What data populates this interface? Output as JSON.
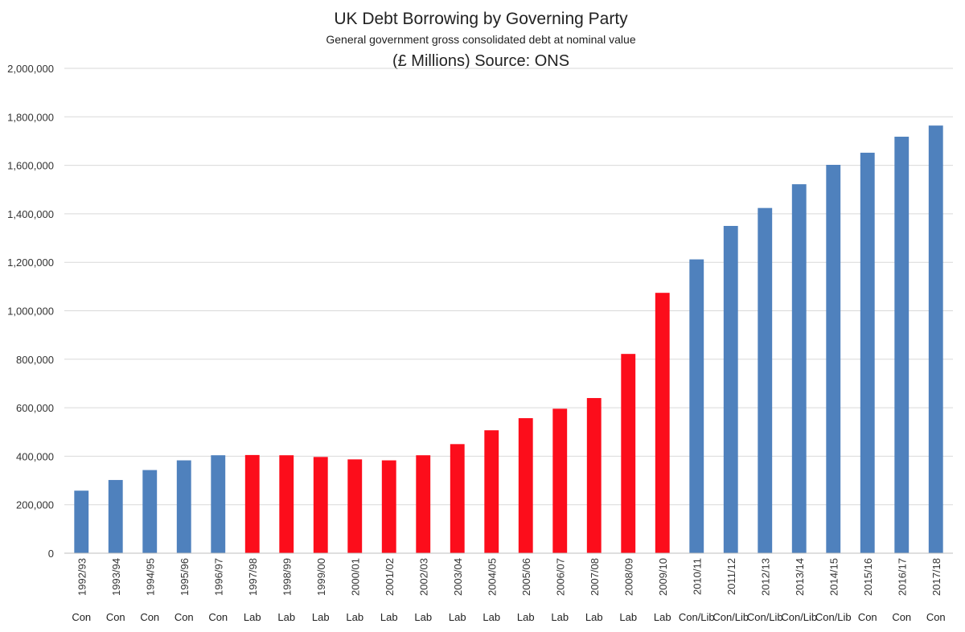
{
  "chart_data": {
    "type": "bar",
    "title": "UK Debt Borrowing by Governing Party",
    "subtitle": "General government gross consolidated debt at nominal value",
    "units_source": "(£ Millions) Source: ONS",
    "xlabel": "",
    "ylabel": "",
    "ylim": [
      0,
      2000000
    ],
    "yticks": [
      0,
      200000,
      400000,
      600000,
      800000,
      1000000,
      1200000,
      1400000,
      1600000,
      1800000,
      2000000
    ],
    "ytick_labels": [
      "0",
      "200,000",
      "400,000",
      "600,000",
      "800,000",
      "1,000,000",
      "1,200,000",
      "1,400,000",
      "1,600,000",
      "1,800,000",
      "2,000,000"
    ],
    "grid": true,
    "categories": [
      "1992/93",
      "1993/94",
      "1994/95",
      "1995/96",
      "1996/97",
      "1997/98",
      "1998/99",
      "1999/00",
      "2000/01",
      "2001/02",
      "2002/03",
      "2003/04",
      "2004/05",
      "2005/06",
      "2006/07",
      "2007/08",
      "2008/09",
      "2009/10",
      "2010/11",
      "2011/12",
      "2012/13",
      "2013/14",
      "2014/15",
      "2015/16",
      "2016/17",
      "2017/18"
    ],
    "parties": [
      "Con",
      "Con",
      "Con",
      "Con",
      "Con",
      "Lab",
      "Lab",
      "Lab",
      "Lab",
      "Lab",
      "Lab",
      "Lab",
      "Lab",
      "Lab",
      "Lab",
      "Lab",
      "Lab",
      "Lab",
      "Con/Lib",
      "Con/Lib",
      "Con/Lib",
      "Con/Lib",
      "Con/Lib",
      "Con",
      "Con",
      "Con"
    ],
    "values": [
      258000,
      302000,
      343000,
      383000,
      404000,
      405000,
      404000,
      397000,
      387000,
      383000,
      404000,
      450000,
      507000,
      557000,
      596000,
      640000,
      822000,
      1074000,
      1212000,
      1350000,
      1424000,
      1522000,
      1602000,
      1652000,
      1718000,
      1764000
    ],
    "party_colors": {
      "Con": "#4f81bd",
      "Lab": "#fc0d1b",
      "Con/Lib": "#4f81bd"
    }
  }
}
